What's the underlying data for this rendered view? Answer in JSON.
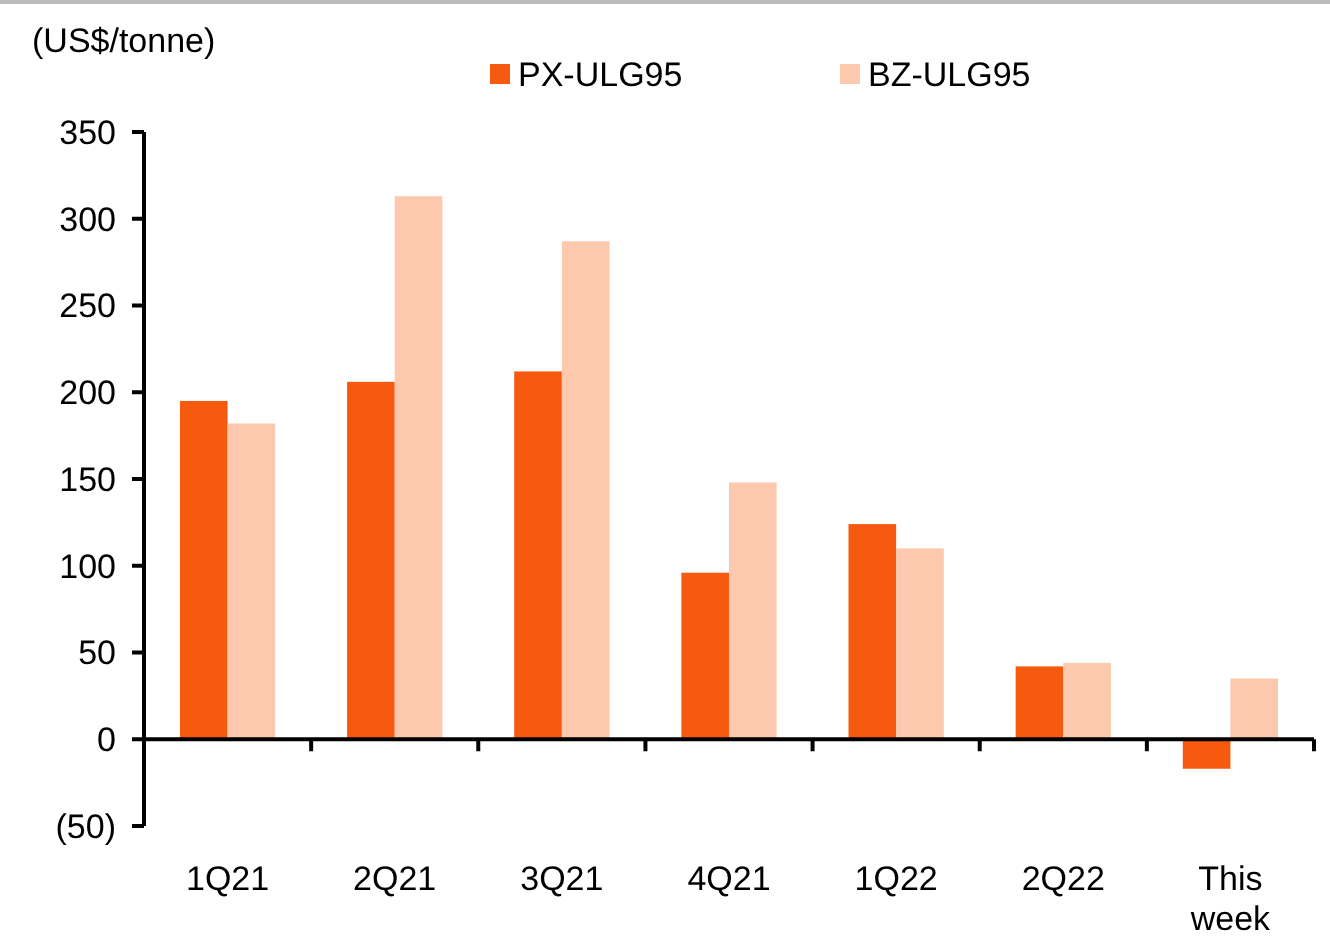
{
  "chart_data": {
    "type": "bar",
    "ylabel": "(US$/tonne)",
    "categories": [
      "1Q21",
      "2Q21",
      "3Q21",
      "4Q21",
      "1Q22",
      "2Q22",
      "This week"
    ],
    "series": [
      {
        "name": "PX-ULG95",
        "color": "#f55a0f",
        "values": [
          195,
          206,
          212,
          96,
          124,
          42,
          -17
        ]
      },
      {
        "name": "BZ-ULG95",
        "color": "#fcc8ae",
        "values": [
          182,
          313,
          287,
          148,
          110,
          44,
          35
        ]
      }
    ],
    "ylim": [
      -50,
      350
    ],
    "yticks": [
      {
        "value": -50,
        "label": "(50)"
      },
      0,
      50,
      100,
      150,
      200,
      250,
      300,
      350
    ],
    "legend": "top"
  }
}
